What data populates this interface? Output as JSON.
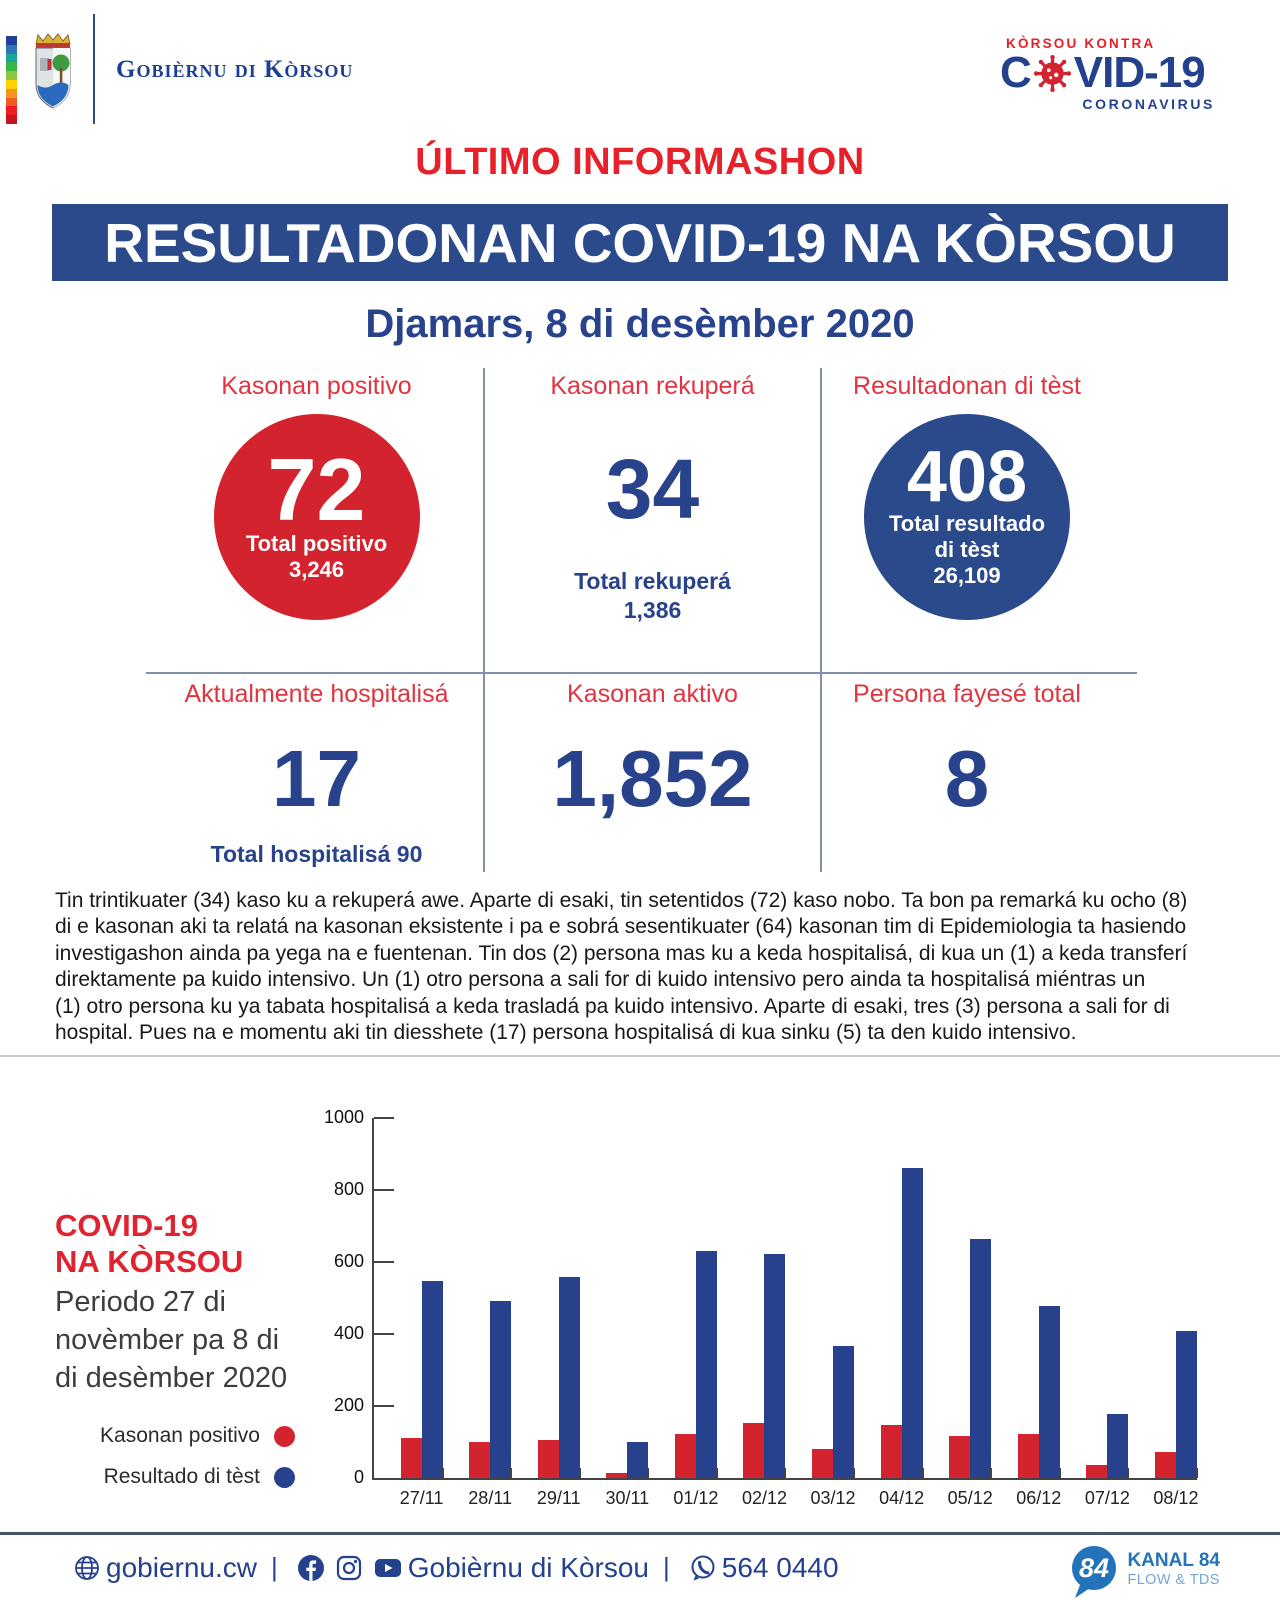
{
  "colors": {
    "accent_red": "#d2232e",
    "accent_red_bright": "#e8202a",
    "banner_blue": "#2b4a8b",
    "number_blue": "#28428b",
    "footer_blue": "#24418e"
  },
  "header": {
    "org_name": "Gobièrnu di Kòrsou",
    "covid_logo": {
      "kicker": "KÒRSOU KONTRA",
      "main_left": "C",
      "main_right": "VID-19",
      "sub": "CORONAVIRUS"
    }
  },
  "title": {
    "kicker": "ÚLTIMO INFORMASHON",
    "banner": "RESULTADONAN COVID-19 NA KÒRSOU",
    "date": "Djamars, 8 di desèmber 2020"
  },
  "stats": {
    "row1": [
      {
        "label": "Kasonan positivo",
        "value": "72",
        "sub1": "Total positivo",
        "sub2": "3,246"
      },
      {
        "label": "Kasonan rekuperá",
        "value": "34",
        "sub1": "Total rekuperá",
        "sub2": "1,386"
      },
      {
        "label": "Resultadonan di tèst",
        "value": "408",
        "sub1": "Total resultado",
        "sub2": "di tèst",
        "sub3": "26,109"
      }
    ],
    "row2": [
      {
        "label": "Aktualmente hospitalisá",
        "value": "17",
        "sub": "Total hospitalisá 90"
      },
      {
        "label": "Kasonan aktivo",
        "value": "1,852"
      },
      {
        "label": "Persona fayesé total",
        "value": "8"
      }
    ]
  },
  "paragraph_lines": [
    "Tin trintikuater (34) kaso ku a rekuperá awe. Aparte di esaki, tin setentidos (72) kaso nobo. Ta bon pa remarká ku ocho (8)",
    "di e kasonan aki ta relatá na kasonan eksistente i pa e sobrá sesentikuater (64) kasonan tim di Epidemiologia ta hasiendo",
    "investigashon ainda pa yega na e fuentenan. Tin dos (2) persona mas ku a keda hospitalisá, di kua un (1) a keda transferí",
    "direktamente pa kuido intensivo. Un (1) otro persona a sali for di kuido intensivo pero ainda ta hospitalisá miéntras un",
    "(1) otro persona ku ya tabata hospitalisá a keda trasladá pa kuido intensivo. Aparte di esaki, tres (3) persona a sali for di",
    "hospital. Pues na e momentu aki tin diesshete (17) persona hospitalisá di kua sinku (5) ta den kuido intensivo."
  ],
  "chart": {
    "title_lines": [
      "COVID-19",
      "NA KÒRSOU"
    ],
    "subtitle_lines": [
      "Periodo 27 di",
      "novèmber pa 8 di",
      "di desèmber 2020"
    ],
    "legend": [
      {
        "label": "Kasonan positivo",
        "color": "#d2232e"
      },
      {
        "label": "Resultado di tèst",
        "color": "#27418d"
      }
    ]
  },
  "chart_data": {
    "type": "bar",
    "categories": [
      "27/11",
      "28/11",
      "29/11",
      "30/11",
      "01/12",
      "02/12",
      "03/12",
      "04/12",
      "05/12",
      "06/12",
      "07/12",
      "08/12"
    ],
    "series": [
      {
        "name": "Kasonan positivo",
        "color": "#d2232e",
        "values": [
          110,
          100,
          105,
          14,
          122,
          153,
          80,
          147,
          117,
          122,
          36,
          72
        ]
      },
      {
        "name": "Resultado di tèst",
        "color": "#27418d",
        "values": [
          548,
          493,
          557,
          100,
          630,
          621,
          368,
          862,
          664,
          478,
          178,
          408
        ]
      }
    ],
    "title": "COVID-19 NA KÒRSOU — Periodo 27 di novèmber pa 8 di di desèmber 2020",
    "xlabel": "",
    "ylabel": "",
    "ylim": [
      0,
      1000
    ],
    "yticks": [
      0,
      200,
      400,
      600,
      800,
      1000
    ],
    "grid": false,
    "legend_position": "left"
  },
  "footer": {
    "website": "gobiernu.cw",
    "social_name": "Gobièrnu di Kòrsou",
    "phone": "564 0440",
    "kanal": {
      "badge": "84",
      "line1": "KANAL 84",
      "line2": "FLOW & TDS"
    }
  }
}
